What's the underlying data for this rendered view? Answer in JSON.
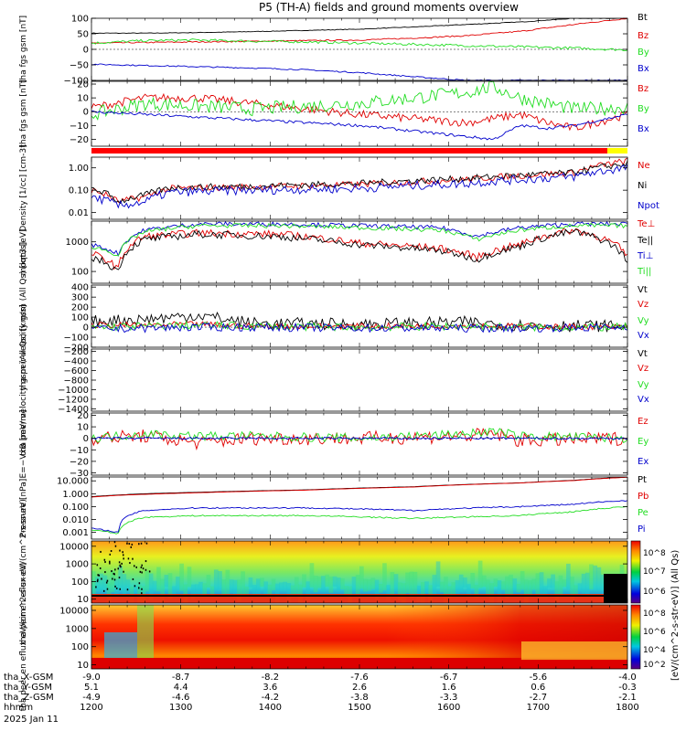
{
  "title": "P5 (TH-A) fields and ground moments overview",
  "date_label": "2025 Jan 11",
  "colors": {
    "black": "#000000",
    "red": "#e00000",
    "green": "#22dd22",
    "blue": "#0000cc",
    "band_red": "#ff0000",
    "band_yellow": "#ffff00"
  },
  "ephemeris": {
    "rows": [
      {
        "label": "tha_X-GSM",
        "values": [
          "-9.0",
          "-8.7",
          "-8.2",
          "-7.6",
          "-6.7",
          "-5.6",
          "-4.0"
        ]
      },
      {
        "label": "tha_Y-GSM",
        "values": [
          "5.1",
          "4.4",
          "3.6",
          "2.6",
          "1.6",
          "0.6",
          "-0.3"
        ]
      },
      {
        "label": "tha_Z-GSM",
        "values": [
          "-4.9",
          "-4.6",
          "-4.2",
          "-3.8",
          "-3.3",
          "-2.7",
          "-2.1"
        ]
      },
      {
        "label": "hhmm",
        "values": [
          "1200",
          "1300",
          "1400",
          "1500",
          "1600",
          "1700",
          "1800"
        ]
      }
    ]
  },
  "colorbar": {
    "label": "[eV/(cm^2-s-str-eV)] (All Qs)",
    "top_ticks": [
      "10^8",
      "10^7",
      "10^6"
    ],
    "bottom_ticks": [
      "10^8",
      "10^6",
      "10^4",
      "10^2"
    ]
  },
  "chart_data": [
    {
      "id": "fgs_gsm",
      "type": "line",
      "ylabel": "tha fgs gsm [nT]",
      "ylim": [
        -100,
        100
      ],
      "log": false,
      "ticks": [
        {
          "v": 100,
          "t": "100"
        },
        {
          "v": 50,
          "t": "50"
        },
        {
          "v": 0,
          "t": "0"
        },
        {
          "v": -50,
          "t": "−50"
        },
        {
          "v": -100,
          "t": "−100"
        }
      ],
      "x": [
        0,
        0.1,
        0.2,
        0.3,
        0.4,
        0.5,
        0.6,
        0.7,
        0.8,
        0.9,
        1.0
      ],
      "series": [
        {
          "name": "Bt",
          "color": "black",
          "noise": 1,
          "values": [
            52,
            52,
            54,
            57,
            61,
            65,
            72,
            80,
            88,
            100,
            100
          ]
        },
        {
          "name": "Bz",
          "color": "red",
          "noise": 2,
          "values": [
            20,
            22,
            24,
            26,
            28,
            30,
            36,
            44,
            58,
            80,
            100
          ]
        },
        {
          "name": "By",
          "color": "green",
          "noise": 4,
          "values": [
            20,
            28,
            30,
            26,
            24,
            20,
            16,
            12,
            8,
            4,
            -2
          ]
        },
        {
          "name": "Bx",
          "color": "blue",
          "noise": 2,
          "values": [
            -48,
            -52,
            -56,
            -60,
            -66,
            -75,
            -88,
            -100,
            -100,
            -100,
            -100
          ]
        }
      ]
    },
    {
      "id": "fgs_dsl",
      "type": "line",
      "ylabel": "tha fgs gsm [nT]",
      "ylim": [
        -25,
        22
      ],
      "log": false,
      "ticks": [
        {
          "v": 20,
          "t": "20"
        },
        {
          "v": 10,
          "t": "10"
        },
        {
          "v": 0,
          "t": "0"
        },
        {
          "v": -10,
          "t": "−10"
        },
        {
          "v": -20,
          "t": "−20"
        }
      ],
      "x": [
        0,
        0.1,
        0.2,
        0.3,
        0.4,
        0.5,
        0.6,
        0.7,
        0.75,
        0.8,
        0.85,
        0.9,
        1.0
      ],
      "series": [
        {
          "name": "Bz",
          "color": "red",
          "noise": 3,
          "values": [
            3,
            10,
            10,
            6,
            2,
            -2,
            -5,
            -8,
            -5,
            -2,
            -8,
            -12,
            -2
          ]
        },
        {
          "name": "By",
          "color": "green",
          "noise": 5,
          "values": [
            -2,
            6,
            4,
            2,
            4,
            6,
            10,
            14,
            18,
            10,
            6,
            2,
            3
          ]
        },
        {
          "name": "Bx",
          "color": "blue",
          "noise": 1,
          "values": [
            0,
            -2,
            -4,
            -6,
            -8,
            -10,
            -14,
            -18,
            -20,
            -10,
            -12,
            -10,
            -2
          ]
        }
      ]
    },
    {
      "id": "density",
      "type": "line",
      "ylabel": "Density [1/cc] [cm-3]",
      "ylim": [
        0.005,
        3
      ],
      "log": true,
      "ticks": [
        {
          "v": 1,
          "t": "1.00"
        },
        {
          "v": 0.1,
          "t": "0.10"
        },
        {
          "v": 0.01,
          "t": "0.01"
        }
      ],
      "x": [
        0,
        0.05,
        0.1,
        0.15,
        0.3,
        0.5,
        0.7,
        0.9,
        1.0
      ],
      "series": [
        {
          "name": "Ne",
          "color": "red",
          "noise": 0.3,
          "values": [
            0.1,
            0.03,
            0.05,
            0.12,
            0.14,
            0.18,
            0.3,
            0.6,
            2.0
          ]
        },
        {
          "name": "Ni",
          "color": "black",
          "noise": 0.3,
          "values": [
            0.12,
            0.03,
            0.06,
            0.13,
            0.15,
            0.2,
            0.33,
            0.6,
            1.5
          ]
        },
        {
          "name": "Npot",
          "color": "blue",
          "noise": 0.4,
          "values": [
            0.05,
            0.02,
            0.03,
            0.08,
            0.1,
            0.12,
            0.2,
            0.4,
            1.0
          ]
        }
      ]
    },
    {
      "id": "temp",
      "type": "line",
      "ylabel": "moqt3 [eV]",
      "ylim": [
        40,
        5000
      ],
      "log": true,
      "ticks": [
        {
          "v": 1000,
          "t": "1000"
        },
        {
          "v": 100,
          "t": "100"
        }
      ],
      "x": [
        0,
        0.05,
        0.1,
        0.2,
        0.35,
        0.5,
        0.65,
        0.72,
        0.8,
        0.9,
        1.0
      ],
      "series": [
        {
          "name": "Te⊥",
          "color": "red",
          "noise": 0.25,
          "values": [
            400,
            120,
            1500,
            2000,
            1800,
            900,
            600,
            300,
            800,
            2500,
            300
          ]
        },
        {
          "name": "Te||",
          "color": "black",
          "noise": 0.25,
          "values": [
            300,
            100,
            1200,
            1800,
            1500,
            800,
            500,
            250,
            700,
            2200,
            200
          ]
        },
        {
          "name": "Ti⊥",
          "color": "blue",
          "noise": 0.15,
          "values": [
            800,
            400,
            2500,
            4000,
            4000,
            3500,
            3000,
            1500,
            3000,
            4000,
            4000
          ]
        },
        {
          "name": "Ti||",
          "color": "green",
          "noise": 0.15,
          "values": [
            700,
            350,
            2200,
            3500,
            3500,
            3000,
            2500,
            1200,
            2500,
            3500,
            3500
          ]
        }
      ]
    },
    {
      "id": "vel_peir",
      "type": "line",
      "ylabel": "tha peir velocity gsm (All Qs) [km/s]",
      "ylim": [
        -200,
        420
      ],
      "log": false,
      "ticks": [
        {
          "v": 400,
          "t": "400"
        },
        {
          "v": 300,
          "t": "300"
        },
        {
          "v": 200,
          "t": "200"
        },
        {
          "v": 100,
          "t": "100"
        },
        {
          "v": 0,
          "t": "0"
        },
        {
          "v": -100,
          "t": "−100"
        },
        {
          "v": -200,
          "t": "−200"
        }
      ],
      "x": [
        0,
        0.1,
        0.2,
        0.3,
        0.5,
        0.7,
        0.8,
        1.0
      ],
      "series": [
        {
          "name": "Vt",
          "color": "black",
          "noise": 60,
          "values": [
            60,
            80,
            120,
            40,
            30,
            50,
            20,
            10
          ]
        },
        {
          "name": "Vz",
          "color": "red",
          "noise": 30,
          "values": [
            20,
            20,
            30,
            10,
            10,
            15,
            10,
            0
          ]
        },
        {
          "name": "Vy",
          "color": "green",
          "noise": 40,
          "values": [
            0,
            10,
            20,
            10,
            0,
            10,
            0,
            0
          ]
        },
        {
          "name": "Vx",
          "color": "blue",
          "noise": 40,
          "values": [
            -20,
            -10,
            0,
            0,
            -10,
            -10,
            -10,
            0
          ]
        }
      ]
    },
    {
      "id": "vel_peer",
      "type": "line",
      "ylabel": "tha peer velocity gsm (All Qs) [km/s]",
      "ylim": [
        -1450,
        -150
      ],
      "log": false,
      "ticks": [
        {
          "v": -200,
          "t": "−200"
        },
        {
          "v": -400,
          "t": "−400"
        },
        {
          "v": -600,
          "t": "−600"
        },
        {
          "v": -800,
          "t": "−800"
        },
        {
          "v": -1000,
          "t": "−1000"
        },
        {
          "v": -1200,
          "t": "−1200"
        },
        {
          "v": -1400,
          "t": "−1400"
        }
      ],
      "x": [],
      "series": [
        {
          "name": "Vt",
          "color": "black",
          "noise": 0,
          "values": []
        },
        {
          "name": "Vz",
          "color": "red",
          "noise": 0,
          "values": []
        },
        {
          "name": "Vy",
          "color": "green",
          "noise": 0,
          "values": []
        },
        {
          "name": "Vx",
          "color": "blue",
          "noise": 0,
          "values": []
        }
      ]
    },
    {
      "id": "efield",
      "type": "line",
      "ylabel": "E=−VxB [mV/m]",
      "ylim": [
        -32,
        22
      ],
      "log": false,
      "ticks": [
        {
          "v": 20,
          "t": "20"
        },
        {
          "v": 10,
          "t": "10"
        },
        {
          "v": 0,
          "t": "0"
        },
        {
          "v": -10,
          "t": "−10"
        },
        {
          "v": -20,
          "t": "−20"
        },
        {
          "v": -30,
          "t": "−30"
        }
      ],
      "x": [
        0,
        0.1,
        0.2,
        0.3,
        0.5,
        0.7,
        0.75,
        0.8,
        1.0
      ],
      "series": [
        {
          "name": "Ez",
          "color": "red",
          "noise": 6,
          "values": [
            0,
            2,
            -4,
            0,
            0,
            2,
            4,
            -2,
            0
          ]
        },
        {
          "name": "Ey",
          "color": "green",
          "noise": 4,
          "values": [
            0,
            4,
            2,
            2,
            0,
            4,
            6,
            2,
            0
          ]
        },
        {
          "name": "Ex",
          "color": "blue",
          "noise": 1,
          "values": [
            0,
            0,
            0,
            0,
            0,
            0,
            0,
            0,
            0
          ]
        }
      ]
    },
    {
      "id": "pressure",
      "type": "line",
      "ylabel": "Pressure [nPa]",
      "ylim": [
        0.0003,
        20
      ],
      "log": true,
      "ticks": [
        {
          "v": 10,
          "t": "10.000"
        },
        {
          "v": 1,
          "t": "1.000"
        },
        {
          "v": 0.1,
          "t": "0.100"
        },
        {
          "v": 0.01,
          "t": "0.010"
        },
        {
          "v": 0.001,
          "t": "0.001"
        }
      ],
      "x": [
        0,
        0.05,
        0.1,
        0.2,
        0.4,
        0.6,
        0.8,
        0.9,
        1.0
      ],
      "series": [
        {
          "name": "Pt",
          "color": "black",
          "noise": 0,
          "values": [
            0.6,
            0.8,
            1,
            1.3,
            2,
            3.5,
            7,
            11,
            20
          ]
        },
        {
          "name": "Pb",
          "color": "red",
          "noise": 0,
          "values": [
            0.55,
            0.75,
            0.9,
            1.2,
            1.9,
            3.3,
            6.8,
            10.5,
            19
          ]
        },
        {
          "name": "Pe",
          "color": "green",
          "noise": 0.1,
          "values": [
            0.0015,
            0.0008,
            0.015,
            0.02,
            0.02,
            0.012,
            0.02,
            0.04,
            0.1
          ]
        },
        {
          "name": "Pi",
          "color": "blue",
          "noise": 0.1,
          "values": [
            0.002,
            0.001,
            0.05,
            0.08,
            0.08,
            0.05,
            0.1,
            0.15,
            0.3
          ]
        }
      ]
    },
    {
      "id": "peir_eflux",
      "type": "heatmap",
      "ylabel": "tha peir en eflux eV/(cm^2-s-sr-eV)",
      "ylim": [
        6,
        20000
      ],
      "log": true,
      "ticks": [
        {
          "v": 10000,
          "t": "10000"
        },
        {
          "v": 1000,
          "t": "1000"
        },
        {
          "v": 100,
          "t": "100"
        },
        {
          "v": 10,
          "t": "10"
        }
      ]
    },
    {
      "id": "peer_eflux",
      "type": "heatmap",
      "ylabel": "tha peer en eflux eV/(cm^2-s-sr-eV)",
      "ylim": [
        6,
        20000
      ],
      "log": true,
      "ticks": [
        {
          "v": 10000,
          "t": "10000"
        },
        {
          "v": 1000,
          "t": "1000"
        },
        {
          "v": 100,
          "t": "100"
        },
        {
          "v": 10,
          "t": "10"
        }
      ]
    }
  ]
}
